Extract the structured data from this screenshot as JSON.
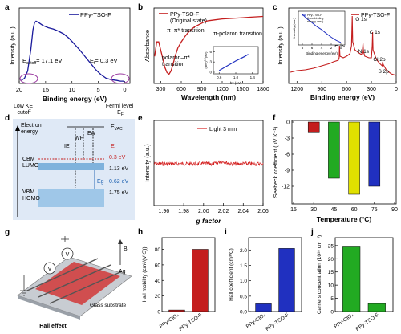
{
  "chart_data": [
    {
      "panel": "a",
      "type": "line",
      "xlabel": "Binding energy (eV)",
      "ylabel": "Intensity (a.u.)",
      "xlim": [
        20,
        -1
      ],
      "x_ticks": [
        "20",
        "15",
        "10",
        "5",
        "0"
      ],
      "series": [
        {
          "name": "PPy-TSO-F",
          "color": "#1a1a9c",
          "x": [
            19.6,
            19.0,
            18.4,
            17.8,
            17.4,
            17.1,
            16.8,
            16.3,
            15.5,
            14.5,
            13.5,
            12.5,
            11.5,
            10.5,
            9.5,
            8.5,
            7.5,
            6.5,
            5.5,
            4.5,
            3.5,
            2.5,
            1.5,
            0.8,
            0.3,
            0
          ],
          "y": [
            0.02,
            0.05,
            0.15,
            0.45,
            0.72,
            0.82,
            0.84,
            0.82,
            0.78,
            0.75,
            0.73,
            0.7,
            0.66,
            0.6,
            0.52,
            0.44,
            0.35,
            0.26,
            0.17,
            0.1,
            0.05,
            0.03,
            0.02,
            0.01,
            0.01,
            0
          ]
        }
      ],
      "annotations": {
        "ecutoff": "E",
        "ecutoff_sub": "cutoff",
        "ecutoff_val": "= 17.1 eV",
        "ef": "E",
        "ef_sub": "f",
        "ef_val": "= 0.3 eV",
        "low_ke": [
          "Low KE",
          "cutoff"
        ],
        "fermi": [
          "Fermi level",
          "E"
        ],
        "fermi_sub": "F"
      }
    },
    {
      "panel": "b",
      "type": "line",
      "xlabel": "Wavelength (nm)",
      "ylabel": "Absorbance",
      "xlim": [
        200,
        1800
      ],
      "x_ticks": [
        300,
        600,
        900,
        1200,
        1500,
        1800
      ],
      "series": [
        {
          "name": "PPy-TSO-F (Original state)",
          "legend_lines": [
            "PPy-TSO-F",
            "(Original state)"
          ],
          "color": "#c41e1e",
          "x": [
            210,
            240,
            270,
            300,
            330,
            360,
            390,
            420,
            450,
            480,
            510,
            550,
            600,
            650,
            700,
            750,
            800,
            850,
            900,
            950,
            1000,
            1100,
            1200,
            1300,
            1400,
            1500,
            1600,
            1700,
            1800
          ],
          "y": [
            0.45,
            0.62,
            0.62,
            0.52,
            0.42,
            0.32,
            0.26,
            0.24,
            0.28,
            0.36,
            0.45,
            0.55,
            0.62,
            0.68,
            0.73,
            0.77,
            0.8,
            0.82,
            0.84,
            0.86,
            0.87,
            0.88,
            0.89,
            0.895,
            0.9,
            0.905,
            0.91,
            0.915,
            0.92
          ]
        }
      ],
      "annotations": [
        "π–π* transition",
        "π-polaron transition",
        "polaron–π*",
        "transition"
      ],
      "inset": {
        "xlabel": "hν (eV)",
        "ylabel": "(αhν)",
        "ylabel_sup": "1/2",
        "ylabel_unit": "(eV)",
        "x_ticks": [
          "0.6",
          "1.0",
          "1.4"
        ],
        "x_tick_values": [
          0.6,
          1.0,
          1.4
        ],
        "y_ticks": [
          "0",
          "3",
          "6"
        ],
        "y_tick_values": [
          0,
          3,
          6
        ],
        "x": [
          0.6,
          0.7,
          0.8,
          0.9,
          1.0,
          1.1,
          1.2,
          1.3
        ],
        "y": [
          0.5,
          1.2,
          1.9,
          2.6,
          3.3,
          3.9,
          4.5,
          5.2
        ]
      }
    },
    {
      "panel": "c",
      "type": "line",
      "xlabel": "Binding energy (eV)",
      "ylabel": "Intensity (a.u.)",
      "xlim": [
        1300,
        0
      ],
      "x_ticks": [
        1200,
        900,
        600,
        300,
        0
      ],
      "series": [
        {
          "name": "PPy-TSO-F",
          "color": "#c41e1e",
          "x": [
            1280,
            1200,
            1100,
            1000,
            900,
            800,
            760,
            700,
            690,
            686,
            680,
            640,
            600,
            560,
            540,
            532,
            526,
            500,
            450,
            420,
            410,
            402,
            396,
            380,
            330,
            300,
            290,
            285,
            280,
            240,
            200,
            170,
            163,
            158,
            120,
            60,
            0
          ],
          "y": [
            0.22,
            0.24,
            0.25,
            0.27,
            0.3,
            0.33,
            0.35,
            0.37,
            0.4,
            0.55,
            0.42,
            0.4,
            0.42,
            0.45,
            0.55,
            0.92,
            0.6,
            0.5,
            0.46,
            0.44,
            0.47,
            0.58,
            0.48,
            0.42,
            0.4,
            0.4,
            0.55,
            0.72,
            0.5,
            0.38,
            0.33,
            0.3,
            0.35,
            0.32,
            0.25,
            0.2,
            0.18
          ]
        }
      ],
      "peak_labels": [
        "O 1s",
        "F 1s",
        "N 1s",
        "C 1s",
        "Cl 2p",
        "S 2p"
      ],
      "inset": {
        "legend": [
          "PPy-TSO-F",
          "(Low binding",
          "energy area)"
        ],
        "xlabel": "Binding energy (eV)",
        "ylabel": "Intensity (a.u.)",
        "x_ticks": [
          "8",
          "6",
          "4",
          "2",
          "0"
        ],
        "x_tick_values": [
          8,
          6,
          4,
          2,
          0
        ],
        "x": [
          8,
          7,
          6,
          5,
          4,
          3,
          2,
          1,
          0
        ],
        "y": [
          0.95,
          0.8,
          0.68,
          0.55,
          0.45,
          0.32,
          0.2,
          0.1,
          0.03
        ]
      }
    },
    {
      "panel": "d",
      "type": "diagram",
      "labels": {
        "electron": "Electron",
        "energy": "energy",
        "evac": "E",
        "evac_sub": "VAC",
        "ie": "IE",
        "wf": "WF",
        "ea": "EA",
        "ef": "E",
        "ef_sub": "f",
        "cbm": "CBM",
        "lumo": "LUMO",
        "vbm": "VBM",
        "homo": "HOMO",
        "eg": "Eg"
      },
      "values": [
        "0.3 eV",
        "1.13 eV",
        "0.62 eV",
        "1.75 eV"
      ]
    },
    {
      "panel": "e",
      "type": "line",
      "xlabel": "g factor",
      "ylabel": "Intensity (a.u.)",
      "xlim": [
        1.95,
        2.06
      ],
      "x_ticks": [
        "1.96",
        "1.98",
        "2.00",
        "2.02",
        "2.04",
        "2.06"
      ],
      "series": [
        {
          "name": "Light 3 min",
          "color": "#d42020"
        }
      ]
    },
    {
      "panel": "f",
      "type": "bar",
      "xlabel": "Temperature (°C)",
      "ylabel": "Seebeck coefficient (μV K⁻¹)",
      "x": [
        30,
        45,
        60,
        75
      ],
      "values": [
        -2,
        -10.5,
        -13.5,
        -12
      ],
      "colors": [
        "#c41e1e",
        "#22aa22",
        "#e0e000",
        "#2030c0"
      ],
      "x_ticks": [
        15,
        30,
        45,
        60,
        75,
        90
      ],
      "y_ticks": [
        0,
        -3,
        -6,
        -9,
        -12
      ],
      "ylim": [
        -15,
        0
      ]
    },
    {
      "panel": "g",
      "type": "diagram",
      "labels": [
        "Ag",
        "B",
        "V",
        "Glass substrate",
        "Hall effect"
      ]
    },
    {
      "panel": "h",
      "type": "bar",
      "ylabel": "Hall mobility (cm²/(V•S))",
      "categories": [
        "PPy-ClO₄",
        "PPy-TSO-F"
      ],
      "values": [
        2,
        80
      ],
      "colors": [
        "#c41e1e",
        "#c41e1e"
      ],
      "y_ticks": [
        0,
        20,
        40,
        60,
        80
      ],
      "ylim": [
        0,
        95
      ]
    },
    {
      "panel": "i",
      "type": "bar",
      "ylabel": "Hall coefficient (cm³/C)",
      "categories": [
        "PPy-ClO₄",
        "PPy-TSO-F"
      ],
      "values": [
        0.25,
        2.05
      ],
      "colors": [
        "#2030c0",
        "#2030c0"
      ],
      "y_ticks": [
        0.0,
        0.5,
        1.0,
        1.5,
        2.0
      ],
      "ylim": [
        0,
        2.4
      ]
    },
    {
      "panel": "j",
      "type": "bar",
      "ylabel": "Carriers concentration (10¹⁸ cm⁻³)",
      "categories": [
        "PPy-ClO₄",
        "PPy-TSO-F"
      ],
      "values": [
        24.5,
        3
      ],
      "colors": [
        "#22aa22",
        "#22aa22"
      ],
      "y_ticks": [
        0,
        5,
        10,
        15,
        20,
        25
      ],
      "ylim": [
        0,
        28
      ]
    }
  ],
  "panel_letters": [
    "a",
    "b",
    "c",
    "d",
    "e",
    "f",
    "g",
    "h",
    "i",
    "j"
  ]
}
